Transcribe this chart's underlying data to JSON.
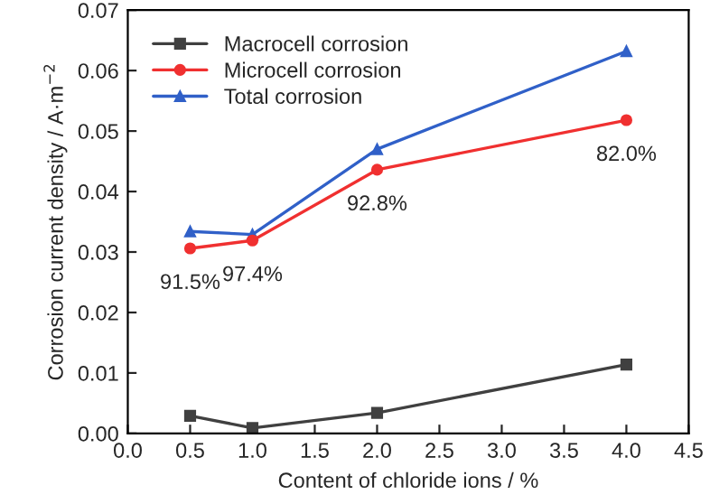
{
  "chart_data": {
    "type": "line",
    "xlabel": "Content of chloride ions / %",
    "ylabel": "Corrosion current density / A·m$^{−2}$",
    "x": [
      0.5,
      1.0,
      2.0,
      4.0
    ],
    "series": [
      {
        "name": "Macrocell corrosion",
        "color": "#404040",
        "marker": "square",
        "values": [
          0.0029,
          0.0009,
          0.0034,
          0.0114
        ]
      },
      {
        "name": "Microcell corrosion",
        "color": "#f03030",
        "marker": "circle",
        "values": [
          0.0306,
          0.0319,
          0.0436,
          0.0518
        ]
      },
      {
        "name": "Total corrosion",
        "color": "#3060c8",
        "marker": "triangle",
        "values": [
          0.0334,
          0.0329,
          0.047,
          0.0632
        ]
      }
    ],
    "annotations": [
      {
        "text": "91.5%",
        "x": 0.5,
        "y": 0.0306
      },
      {
        "text": "97.4%",
        "x": 1.0,
        "y": 0.0319
      },
      {
        "text": "92.8%",
        "x": 2.0,
        "y": 0.0436
      },
      {
        "text": "82.0%",
        "x": 4.0,
        "y": 0.0518
      }
    ],
    "xlim": [
      0.0,
      4.5
    ],
    "xticks": [
      {
        "value": 0,
        "label": "0.0"
      },
      0.5,
      {
        "value": 1,
        "label": "1.0"
      },
      1.5,
      {
        "value": 2,
        "label": "2.0"
      },
      2.5,
      {
        "value": 3,
        "label": "3.0"
      },
      3.5,
      {
        "value": 4,
        "label": "4.0"
      },
      4.5
    ],
    "ylim": [
      0.0,
      0.07
    ],
    "yticks": [
      {
        "value": 0,
        "label": "0.00"
      },
      0.01,
      0.02,
      0.03,
      0.04,
      0.05,
      0.06,
      0.07
    ],
    "legend": "top left",
    "grid": false,
    "line_style": "solid"
  }
}
